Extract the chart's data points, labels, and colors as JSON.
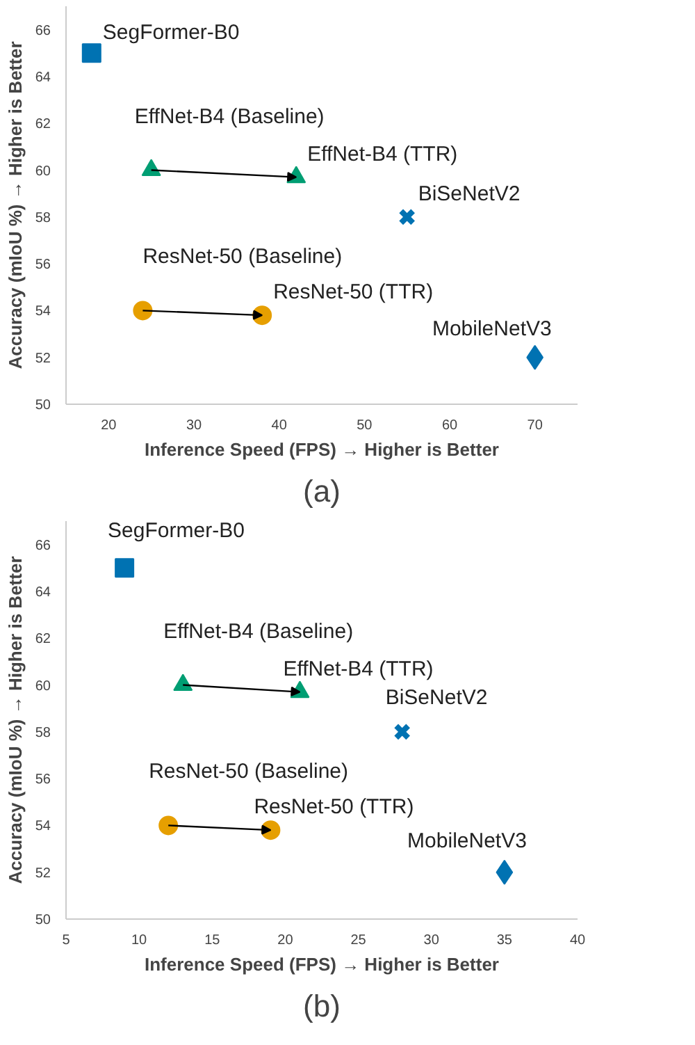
{
  "chart_data": [
    {
      "type": "scatter",
      "title": "(a)",
      "xlabel": "Inference Speed (FPS) → Higher is Better",
      "ylabel": "Accuracy (mIoU %) → Higher is Better",
      "xlim": [
        15,
        75
      ],
      "ylim": [
        50,
        67
      ],
      "xticks": [
        20,
        30,
        40,
        50,
        60,
        70
      ],
      "yticks": [
        50,
        52,
        54,
        56,
        58,
        60,
        62,
        64,
        66
      ],
      "series": [
        {
          "name": "SegFormer-B0",
          "color": "#0072b2",
          "marker": "square",
          "x": [
            18
          ],
          "values": [
            65
          ]
        },
        {
          "name": "EffNet-B4 (Baseline)",
          "color": "#009e73",
          "marker": "triangle",
          "x": [
            25
          ],
          "values": [
            60
          ]
        },
        {
          "name": "EffNet-B4 (TTR)",
          "color": "#009e73",
          "marker": "triangle",
          "x": [
            42
          ],
          "values": [
            59.7
          ]
        },
        {
          "name": "BiSeNetV2",
          "color": "#0072b2",
          "marker": "cross",
          "x": [
            55
          ],
          "values": [
            58
          ]
        },
        {
          "name": "ResNet-50 (Baseline)",
          "color": "#e69f00",
          "marker": "circle",
          "x": [
            24
          ],
          "values": [
            54
          ]
        },
        {
          "name": "ResNet-50 (TTR)",
          "color": "#e69f00",
          "marker": "circle",
          "x": [
            38
          ],
          "values": [
            53.8
          ]
        },
        {
          "name": "MobileNetV3",
          "color": "#0072b2",
          "marker": "diamond",
          "x": [
            70
          ],
          "values": [
            52
          ]
        }
      ]
    },
    {
      "type": "scatter",
      "title": "(b)",
      "xlabel": "Inference Speed (FPS) → Higher is Better",
      "ylabel": "Accuracy (mIoU %) → Higher is Better",
      "xlim": [
        5,
        40
      ],
      "ylim": [
        50,
        67
      ],
      "xticks": [
        5,
        10,
        15,
        20,
        25,
        30,
        35,
        40
      ],
      "yticks": [
        50,
        52,
        54,
        56,
        58,
        60,
        62,
        64,
        66
      ],
      "series": [
        {
          "name": "SegFormer-B0",
          "color": "#0072b2",
          "marker": "square",
          "x": [
            9
          ],
          "values": [
            65
          ]
        },
        {
          "name": "EffNet-B4 (Baseline)",
          "color": "#009e73",
          "marker": "triangle",
          "x": [
            13
          ],
          "values": [
            60
          ]
        },
        {
          "name": "EffNet-B4 (TTR)",
          "color": "#009e73",
          "marker": "triangle",
          "x": [
            21
          ],
          "values": [
            59.7
          ]
        },
        {
          "name": "BiSeNetV2",
          "color": "#0072b2",
          "marker": "cross",
          "x": [
            28
          ],
          "values": [
            58
          ]
        },
        {
          "name": "ResNet-50 (Baseline)",
          "color": "#e69f00",
          "marker": "circle",
          "x": [
            12
          ],
          "values": [
            54
          ]
        },
        {
          "name": "ResNet-50 (TTR)",
          "color": "#e69f00",
          "marker": "circle",
          "x": [
            19
          ],
          "values": [
            53.8
          ]
        },
        {
          "name": "MobileNetV3",
          "color": "#0072b2",
          "marker": "diamond",
          "x": [
            35
          ],
          "values": [
            52
          ]
        }
      ]
    }
  ]
}
